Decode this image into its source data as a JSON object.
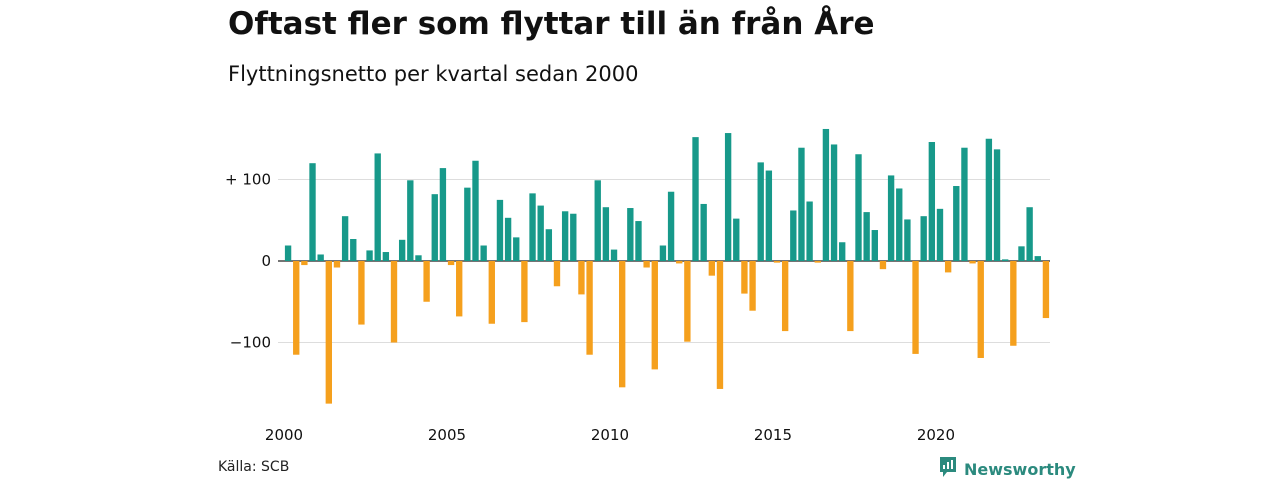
{
  "title": "Oftast fler som flyttar till än från Åre",
  "subtitle": "Flyttningsnetto per kvartal sedan 2000",
  "source": "Källa: SCB",
  "brand": "Newsworthy",
  "colors": {
    "positive": "#17998a",
    "negative": "#f5a01d",
    "grid": "#dddddd",
    "baseline": "#222222",
    "brand": "#2b8a7e"
  },
  "chart_data": {
    "type": "bar",
    "x_start": 2000,
    "period": "quarter",
    "x_ticks": [
      {
        "value": 2000,
        "label": "2000"
      },
      {
        "value": 2005,
        "label": "2005"
      },
      {
        "value": 2010,
        "label": "2010"
      },
      {
        "value": 2015,
        "label": "2015"
      },
      {
        "value": 2020,
        "label": "2020"
      }
    ],
    "y_ticks": [
      {
        "value": 100,
        "label": "+ 100"
      },
      {
        "value": 0,
        "label": "0"
      },
      {
        "value": -100,
        "label": "−100"
      }
    ],
    "ylim": [
      -175,
      165
    ],
    "grid": true,
    "values": [
      19,
      -115,
      -5,
      120,
      8,
      -175,
      -8,
      55,
      27,
      -78,
      13,
      132,
      11,
      -100,
      26,
      99,
      7,
      -50,
      82,
      114,
      -5,
      -68,
      90,
      123,
      19,
      -77,
      75,
      53,
      29,
      -75,
      83,
      68,
      39,
      -31,
      61,
      58,
      -41,
      -115,
      99,
      66,
      14,
      -155,
      65,
      49,
      -8,
      -133,
      19,
      85,
      -3,
      -99,
      152,
      70,
      -18,
      -157,
      157,
      52,
      -40,
      -61,
      121,
      111,
      -2,
      -86,
      62,
      139,
      73,
      -2,
      162,
      143,
      23,
      -86,
      131,
      60,
      38,
      -10,
      105,
      89,
      51,
      -114,
      55,
      146,
      64,
      -14,
      92,
      139,
      -3,
      -119,
      150,
      137,
      2,
      -104,
      18,
      66,
      6,
      -70
    ]
  }
}
